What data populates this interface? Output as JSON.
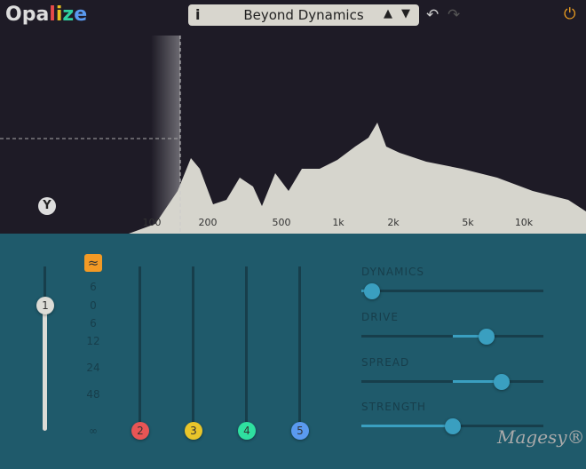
{
  "header": {
    "logo": "Opalize",
    "logo_letters": [
      {
        "t": "Opa",
        "c": "#dddddd"
      },
      {
        "t": "l",
        "c": "#e64a4a"
      },
      {
        "t": "i",
        "c": "#e8c020"
      },
      {
        "t": "z",
        "c": "#30d0a0"
      },
      {
        "t": "e",
        "c": "#5a9af0"
      }
    ],
    "info_label": "i",
    "preset_name": "Beyond Dynamics",
    "prev_label": "▲",
    "next_label": "▼",
    "undo_icon": "↶",
    "redo_icon": "↷",
    "power_icon": "⏻"
  },
  "spectrum": {
    "freq_labels": [
      "100",
      "200",
      "500",
      "1k",
      "2k",
      "5k",
      "10k"
    ],
    "tuning_label": "Y"
  },
  "mixer": {
    "filter_icon": "≈",
    "scale": [
      "6",
      "0",
      "6",
      "12",
      "24",
      "48",
      "∞"
    ],
    "channels": [
      {
        "label": "1",
        "color": "#dcdcd6",
        "level": 0.76
      },
      {
        "label": "2",
        "color": "#e85555",
        "level": 0
      },
      {
        "label": "3",
        "color": "#e8c52a",
        "level": 0
      },
      {
        "label": "4",
        "color": "#2fe0a0",
        "level": 0
      },
      {
        "label": "5",
        "color": "#5a9af0",
        "level": 0
      }
    ]
  },
  "params": [
    {
      "label": "DYNAMICS",
      "value": 0.06,
      "bipolar": false
    },
    {
      "label": "DRIVE",
      "value": 0.69,
      "bipolar": true
    },
    {
      "label": "SPREAD",
      "value": 0.77,
      "bipolar": true
    },
    {
      "label": "STRENGTH",
      "value": 0.5,
      "bipolar": false
    }
  ],
  "watermark": "Magesy®"
}
